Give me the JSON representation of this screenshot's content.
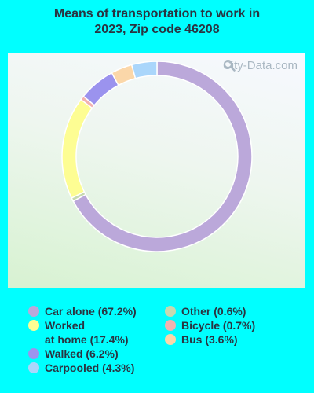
{
  "title": {
    "line1": "Means of transportation to work in",
    "line2": "2023, Zip code 46208"
  },
  "watermark": "City-Data.com",
  "chart_data": {
    "type": "pie",
    "title": "Means of transportation to work in 2023, Zip code 46208",
    "donut": true,
    "start_angle_deg": 0,
    "slices": [
      {
        "label": "Car alone",
        "value": 67.2,
        "color": "#bba8da"
      },
      {
        "label": "Other",
        "value": 0.6,
        "color": "#c6d9b0"
      },
      {
        "label": "Worked at home",
        "value": 17.4,
        "color": "#fdfd93"
      },
      {
        "label": "Bicycle",
        "value": 0.7,
        "color": "#f2b2b0"
      },
      {
        "label": "Walked",
        "value": 6.2,
        "color": "#9b93ee"
      },
      {
        "label": "Bus",
        "value": 3.6,
        "color": "#fbd7a9"
      },
      {
        "label": "Carpooled",
        "value": 4.3,
        "color": "#aad6fb"
      }
    ]
  },
  "legend": {
    "left": [
      {
        "text": "Car alone (67.2%)",
        "color": "#bba8da"
      },
      {
        "text": "Worked\nat home (17.4%)",
        "color": "#fdfd93"
      },
      {
        "text": "Walked (6.2%)",
        "color": "#9b93ee"
      },
      {
        "text": "Carpooled (4.3%)",
        "color": "#aad6fb"
      }
    ],
    "right": [
      {
        "text": "Other (0.6%)",
        "color": "#c6d9b0"
      },
      {
        "text": "Bicycle (0.7%)",
        "color": "#f2b2b0"
      },
      {
        "text": "Bus (3.6%)",
        "color": "#fbd7a9"
      }
    ]
  }
}
